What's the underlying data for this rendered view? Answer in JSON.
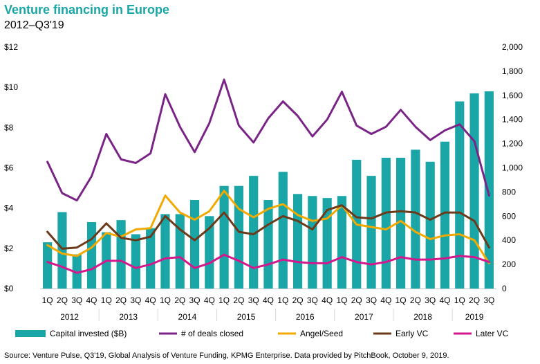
{
  "chart_data": {
    "type": "bar+line",
    "title": "Venture financing in Europe",
    "subtitle": "2012–Q3'19",
    "quarters": [
      "1Q",
      "2Q",
      "3Q",
      "4Q",
      "1Q",
      "2Q",
      "3Q",
      "4Q",
      "1Q",
      "2Q",
      "3Q",
      "4Q",
      "1Q",
      "2Q",
      "3Q",
      "4Q",
      "1Q",
      "2Q",
      "3Q",
      "4Q",
      "1Q",
      "2Q",
      "3Q",
      "4Q",
      "1Q",
      "2Q",
      "3Q",
      "4Q",
      "1Q",
      "2Q",
      "3Q"
    ],
    "years": [
      "2012",
      "2013",
      "2014",
      "2015",
      "2016",
      "2017",
      "2018",
      "2019"
    ],
    "left_axis": {
      "ticks": [
        "$0",
        "$2",
        "$4",
        "$6",
        "$8",
        "$10",
        "$12"
      ],
      "range": [
        0,
        12
      ]
    },
    "right_axis": {
      "ticks": [
        "0",
        "200",
        "400",
        "600",
        "800",
        "1,000",
        "1,200",
        "1,400",
        "1,600",
        "1,800",
        "2,000"
      ],
      "range": [
        0,
        2000
      ]
    },
    "bars": {
      "name": "Capital invested ($B)",
      "color": "#1aa6a6",
      "values": [
        2.3,
        3.8,
        1.7,
        3.3,
        2.8,
        3.4,
        2.7,
        3.0,
        3.7,
        3.7,
        4.4,
        3.6,
        5.1,
        5.1,
        5.6,
        4.4,
        5.8,
        4.7,
        4.6,
        4.5,
        4.6,
        6.4,
        5.6,
        6.5,
        6.5,
        6.9,
        6.3,
        7.3,
        9.3,
        9.7,
        9.8
      ]
    },
    "lines": [
      {
        "name": "# of deals closed",
        "color": "#7b2487",
        "values": [
          1050,
          790,
          730,
          930,
          1280,
          1070,
          1040,
          1120,
          1610,
          1340,
          1130,
          1370,
          1730,
          1350,
          1210,
          1410,
          1550,
          1430,
          1260,
          1400,
          1630,
          1350,
          1280,
          1340,
          1480,
          1340,
          1230,
          1310,
          1360,
          1220,
          770
        ]
      },
      {
        "name": "Angel/Seed",
        "color": "#f2a900",
        "values": [
          360,
          290,
          270,
          340,
          460,
          430,
          490,
          500,
          770,
          630,
          570,
          640,
          810,
          660,
          590,
          660,
          700,
          610,
          560,
          580,
          690,
          530,
          510,
          490,
          560,
          470,
          410,
          440,
          450,
          400,
          210
        ]
      },
      {
        "name": "Early VC",
        "color": "#6b3a1a",
        "values": [
          470,
          330,
          340,
          410,
          540,
          420,
          400,
          430,
          600,
          490,
          400,
          500,
          630,
          470,
          450,
          530,
          600,
          560,
          490,
          650,
          690,
          590,
          580,
          630,
          640,
          630,
          570,
          630,
          630,
          560,
          340
        ]
      },
      {
        "name": "Later VC",
        "color": "#d4178c",
        "values": [
          220,
          180,
          130,
          160,
          230,
          230,
          170,
          200,
          250,
          260,
          170,
          210,
          280,
          230,
          170,
          200,
          240,
          220,
          210,
          210,
          260,
          220,
          200,
          220,
          260,
          240,
          240,
          250,
          270,
          260,
          220
        ]
      }
    ]
  },
  "source": "Source: Venture Pulse, Q3'19, Global Analysis of Venture Funding, KPMG Enterprise. Data provided by PitchBook, October 9, 2019."
}
